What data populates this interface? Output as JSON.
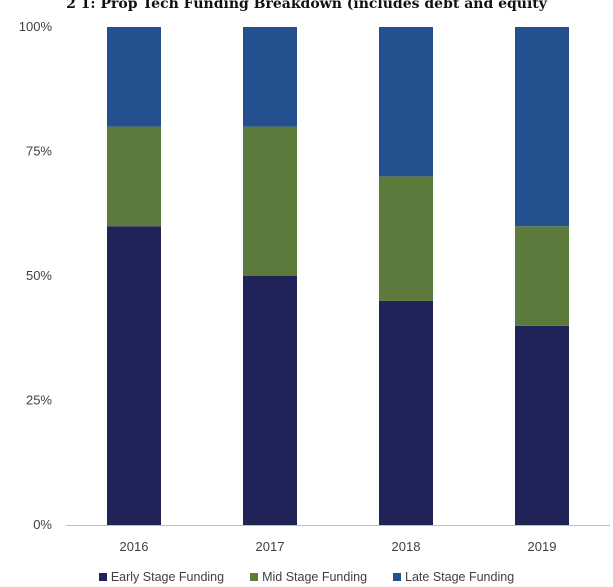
{
  "chart_data": {
    "type": "bar",
    "stacked": true,
    "title": "2 1: Prop Tech Funding Breakdown (includes debt and equity",
    "categories": [
      "2016",
      "2017",
      "2018",
      "2019"
    ],
    "series": [
      {
        "name": "Early Stage Funding",
        "values": [
          60,
          50,
          45,
          40
        ],
        "color": "#1f2358"
      },
      {
        "name": "Mid Stage Funding",
        "values": [
          20,
          30,
          25,
          20
        ],
        "color": "#5b7a3c"
      },
      {
        "name": "Late Stage Funding",
        "values": [
          20,
          20,
          30,
          40
        ],
        "color": "#25508f"
      }
    ],
    "ylim": [
      0,
      100
    ],
    "yticks": [
      "0%",
      "25%",
      "50%",
      "75%",
      "100%"
    ],
    "xlabel": "",
    "ylabel": "",
    "grid": false,
    "legend_position": "bottom"
  }
}
